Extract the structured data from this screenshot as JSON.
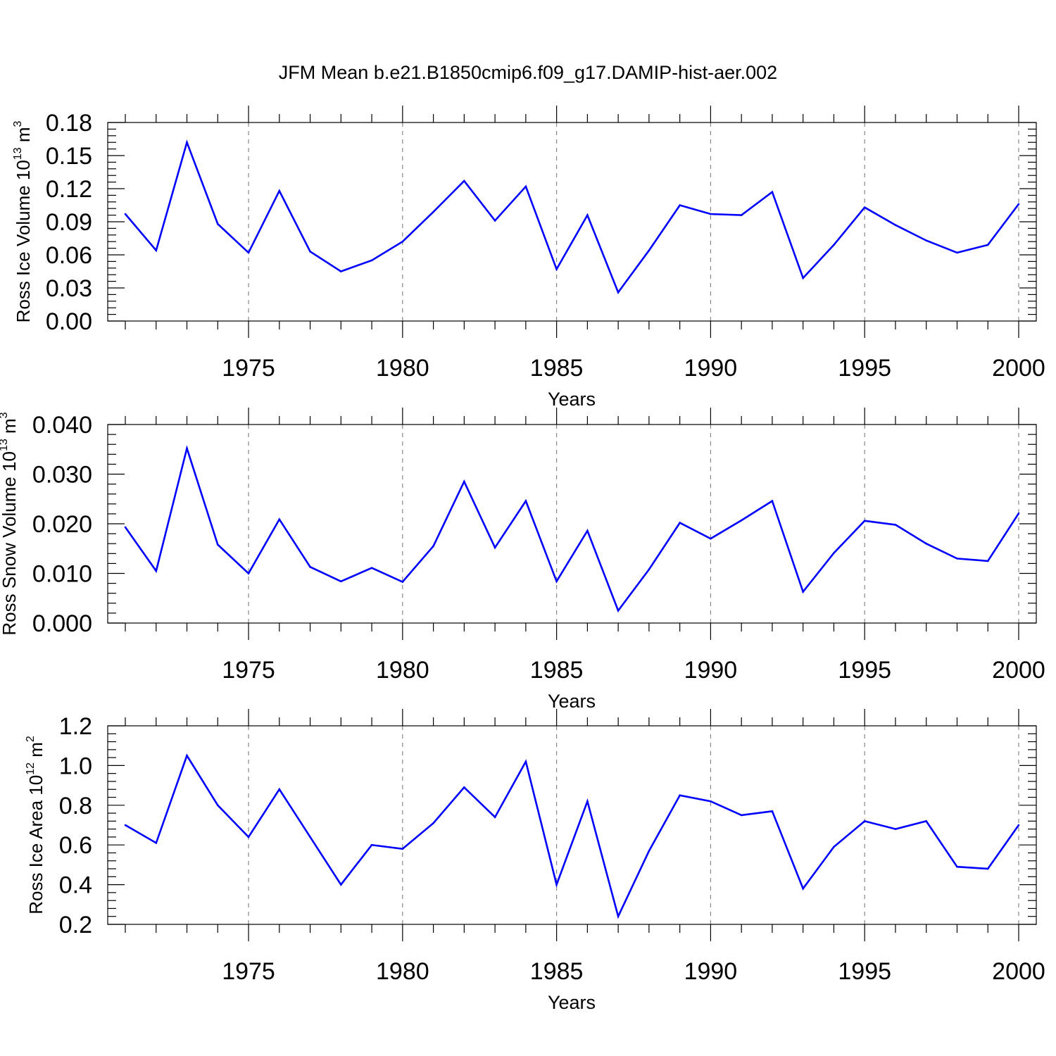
{
  "figure_title": "JFM Mean b.e21.B1850cmip6.f09_g17.DAMIP-hist-aer.002",
  "colors": {
    "line": "#0000ff",
    "axis": "#000000",
    "grid": "#888888"
  },
  "chart_data": [
    {
      "type": "line",
      "xlabel": "Years",
      "ylabel": {
        "prefix": "Ross Ice Volume 10",
        "exponent": "13",
        "unit": " m",
        "unit_exponent": "3"
      },
      "xlim": [
        1971,
        2000
      ],
      "ylim": [
        0,
        0.18
      ],
      "xticks": [
        1975,
        1980,
        1985,
        1990,
        1995,
        2000
      ],
      "xtick_labels": [
        "1975",
        "1980",
        "1985",
        "1990",
        "1995",
        "2000"
      ],
      "yticks": [
        0,
        0.03,
        0.06,
        0.09,
        0.12,
        0.15,
        0.18
      ],
      "ytick_labels": [
        "0.00",
        "0.03",
        "0.06",
        "0.09",
        "0.12",
        "0.15",
        "0.18"
      ],
      "grid": "vertical dashed at major x ticks",
      "x": [
        1971,
        1972,
        1973,
        1974,
        1975,
        1976,
        1977,
        1978,
        1979,
        1980,
        1981,
        1982,
        1983,
        1984,
        1985,
        1986,
        1987,
        1988,
        1989,
        1990,
        1991,
        1992,
        1993,
        1994,
        1995,
        1996,
        1997,
        1998,
        1999,
        2000
      ],
      "values": [
        0.097,
        0.064,
        0.162,
        0.088,
        0.062,
        0.118,
        0.063,
        0.045,
        0.055,
        0.072,
        0.099,
        0.127,
        0.091,
        0.122,
        0.047,
        0.096,
        0.026,
        0.064,
        0.105,
        0.097,
        0.096,
        0.117,
        0.039,
        0.069,
        0.103,
        0.087,
        0.073,
        0.062,
        0.069,
        0.106
      ]
    },
    {
      "type": "line",
      "xlabel": "Years",
      "ylabel": {
        "prefix": "Ross Snow Volume 10",
        "exponent": "13",
        "unit": " m",
        "unit_exponent": "3"
      },
      "xlim": [
        1971,
        2000
      ],
      "ylim": [
        0,
        0.04
      ],
      "xticks": [
        1975,
        1980,
        1985,
        1990,
        1995,
        2000
      ],
      "xtick_labels": [
        "1975",
        "1980",
        "1985",
        "1990",
        "1995",
        "2000"
      ],
      "yticks": [
        0,
        0.01,
        0.02,
        0.03,
        0.04
      ],
      "ytick_labels": [
        "0.000",
        "0.010",
        "0.020",
        "0.030",
        "0.040"
      ],
      "grid": "vertical dashed at major x ticks",
      "x": [
        1971,
        1972,
        1973,
        1974,
        1975,
        1976,
        1977,
        1978,
        1979,
        1980,
        1981,
        1982,
        1983,
        1984,
        1985,
        1986,
        1987,
        1988,
        1989,
        1990,
        1991,
        1992,
        1993,
        1994,
        1995,
        1996,
        1997,
        1998,
        1999,
        2000
      ],
      "values": [
        0.0193,
        0.0105,
        0.0352,
        0.0158,
        0.01,
        0.0209,
        0.0113,
        0.0084,
        0.0111,
        0.0083,
        0.0155,
        0.0285,
        0.0152,
        0.0246,
        0.0084,
        0.0186,
        0.0025,
        0.0108,
        0.0202,
        0.017,
        0.0207,
        0.0246,
        0.0063,
        0.0141,
        0.0206,
        0.0198,
        0.016,
        0.013,
        0.0125,
        0.0221
      ]
    },
    {
      "type": "line",
      "xlabel": "Years",
      "ylabel": {
        "prefix": "Ross Ice Area 10",
        "exponent": "12",
        "unit": " m",
        "unit_exponent": "2"
      },
      "xlim": [
        1971,
        2000
      ],
      "ylim": [
        0.2,
        1.2
      ],
      "xticks": [
        1975,
        1980,
        1985,
        1990,
        1995,
        2000
      ],
      "xtick_labels": [
        "1975",
        "1980",
        "1985",
        "1990",
        "1995",
        "2000"
      ],
      "yticks": [
        0.2,
        0.4,
        0.6,
        0.8,
        1.0,
        1.2
      ],
      "ytick_labels": [
        "0.2",
        "0.4",
        "0.6",
        "0.8",
        "1.0",
        "1.2"
      ],
      "grid": "vertical dashed at major x ticks",
      "x": [
        1971,
        1972,
        1973,
        1974,
        1975,
        1976,
        1977,
        1978,
        1979,
        1980,
        1981,
        1982,
        1983,
        1984,
        1985,
        1986,
        1987,
        1988,
        1989,
        1990,
        1991,
        1992,
        1993,
        1994,
        1995,
        1996,
        1997,
        1998,
        1999,
        2000
      ],
      "values": [
        0.7,
        0.61,
        1.05,
        0.8,
        0.64,
        0.88,
        0.64,
        0.4,
        0.6,
        0.58,
        0.71,
        0.89,
        0.74,
        1.02,
        0.4,
        0.82,
        0.24,
        0.57,
        0.85,
        0.82,
        0.75,
        0.77,
        0.38,
        0.59,
        0.72,
        0.68,
        0.72,
        0.49,
        0.48,
        0.7
      ]
    }
  ]
}
